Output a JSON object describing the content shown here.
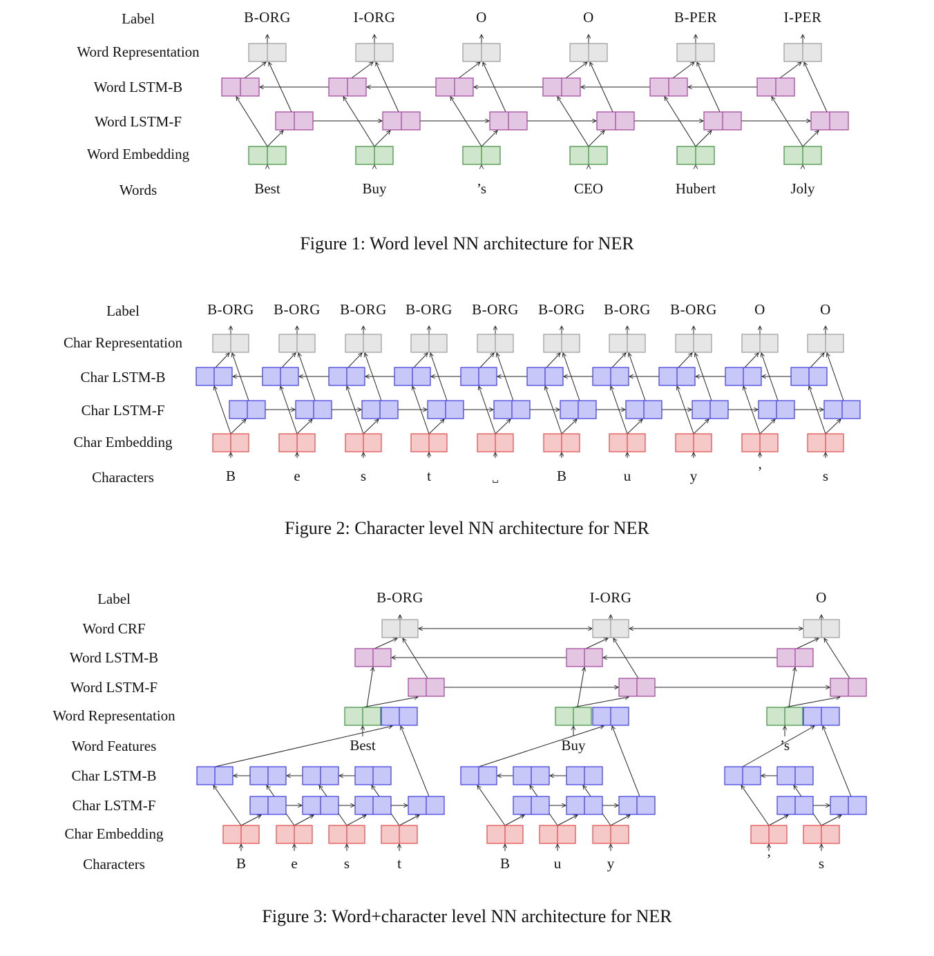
{
  "figure1": {
    "caption": "Figure 1: Word level NN architecture for NER",
    "rows": [
      "Label",
      "Word Representation",
      "Word LSTM-B",
      "Word LSTM-F",
      "Word Embedding",
      "Words"
    ],
    "tags": [
      "B-ORG",
      "I-ORG",
      "O",
      "O",
      "B-PER",
      "I-PER"
    ],
    "words": [
      "Best",
      "Buy",
      "’s",
      "CEO",
      "Hubert",
      "Joly"
    ]
  },
  "figure2": {
    "caption": "Figure 2: Character level NN architecture for NER",
    "rows": [
      "Label",
      "Char Representation",
      "Char LSTM-B",
      "Char LSTM-F",
      "Char Embedding",
      "Characters"
    ],
    "tags": [
      "B-ORG",
      "B-ORG",
      "B-ORG",
      "B-ORG",
      "B-ORG",
      "B-ORG",
      "B-ORG",
      "B-ORG",
      "O",
      "O"
    ],
    "chars": [
      "B",
      "e",
      "s",
      "t",
      "␣",
      "B",
      "u",
      "y",
      "’",
      "s"
    ]
  },
  "figure3": {
    "caption": "Figure 3: Word+character level NN architecture for NER",
    "rows": [
      "Label",
      "Word CRF",
      "Word LSTM-B",
      "Word LSTM-F",
      "Word Representation",
      "Word Features",
      "Char LSTM-B",
      "Char LSTM-F",
      "Char Embedding",
      "Characters"
    ],
    "tags": [
      "B-ORG",
      "I-ORG",
      "O"
    ],
    "words": [
      "Best",
      "Buy",
      "’s"
    ],
    "chars": [
      "B",
      "e",
      "s",
      "t",
      "B",
      "u",
      "y",
      "’",
      "s"
    ]
  },
  "colors": {
    "representation_fill": "#e6e6e6",
    "representation_stroke": "#9a9a9a",
    "word_lstm_fill": "#e3c6e1",
    "word_lstm_stroke": "#a0409a",
    "char_lstm_fill": "#c8c8f8",
    "char_lstm_stroke": "#3a3ae0",
    "word_embedding_fill": "#cfe6cc",
    "word_embedding_stroke": "#3c8f3c",
    "char_embedding_fill": "#f6c9c9",
    "char_embedding_stroke": "#df4a4a",
    "line": "#222222"
  }
}
